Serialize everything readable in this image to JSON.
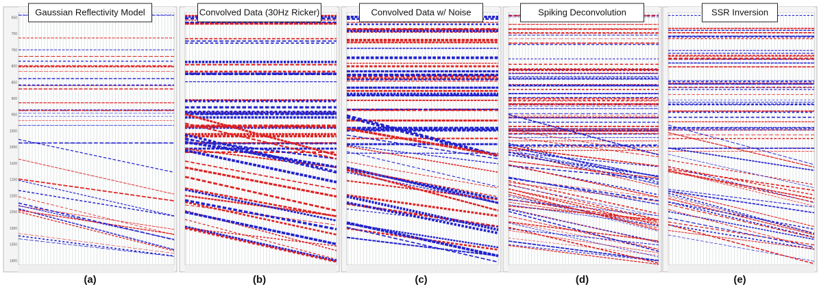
{
  "panels": [
    {
      "title": "Gaussian Reflectivity Model",
      "label": "(a)"
    },
    {
      "title": "Convolved Data (30Hz Ricker)",
      "label": "(b)"
    },
    {
      "title": "Convolved Data w/ Noise",
      "label": "(c)"
    },
    {
      "title": "Spiking Deconvolution",
      "label": "(d)"
    },
    {
      "title": "SSR Inversion",
      "label": "(e)"
    }
  ],
  "axis": {
    "yticks": [
      650,
      700,
      750,
      800,
      850,
      900,
      950,
      1000,
      1050,
      1100,
      1150,
      1200,
      1250,
      1300,
      1350,
      1400
    ]
  }
}
